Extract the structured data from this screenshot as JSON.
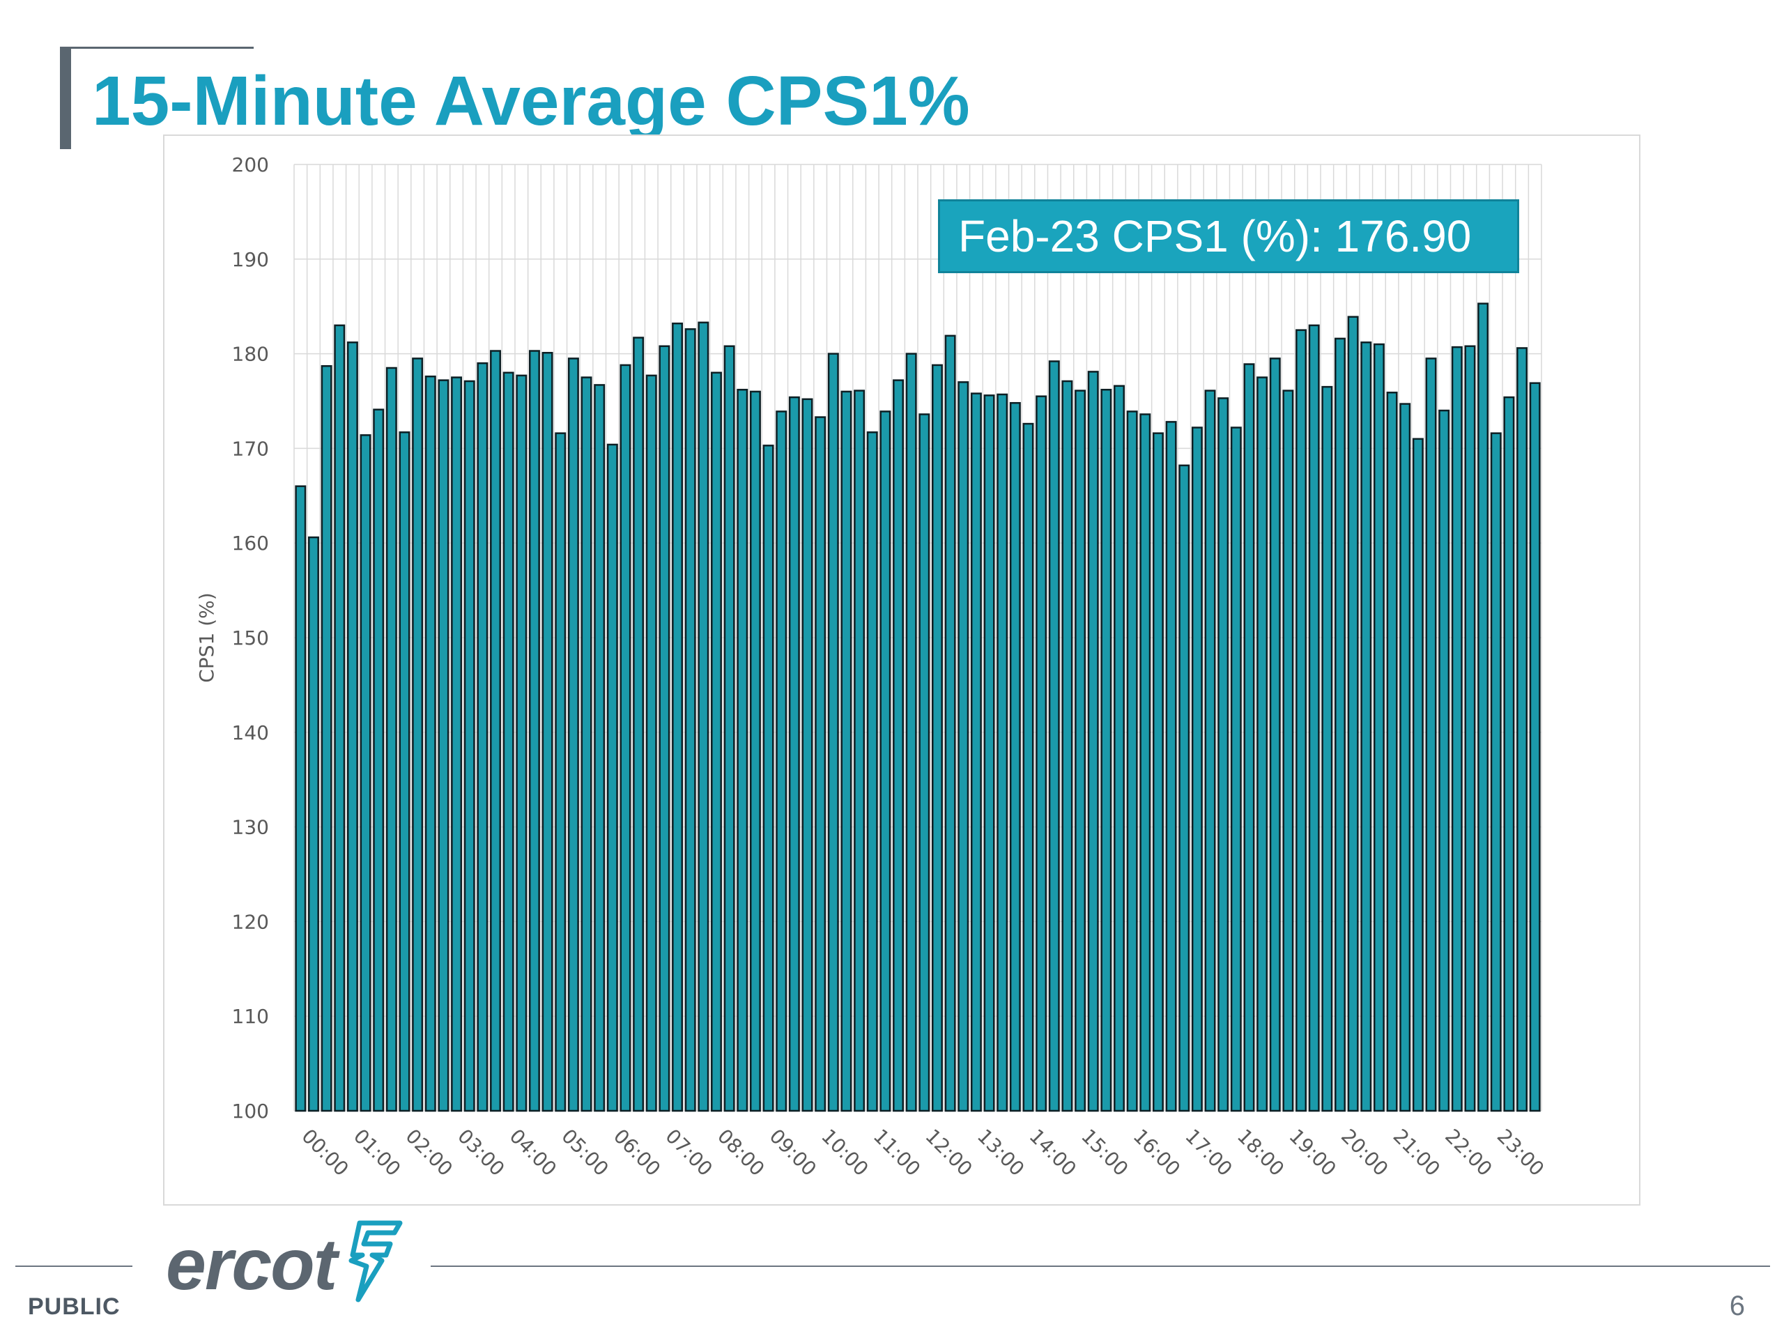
{
  "slide": {
    "title": "15-Minute Average CPS1%",
    "classification": "PUBLIC",
    "page_number": "6",
    "logo_text": "ercot"
  },
  "callout": {
    "text": "Feb-23 CPS1 (%): 176.90"
  },
  "colors": {
    "title": "#1a9fbf",
    "bar_fill": "#1b9aaa",
    "bar_stroke": "#0d1f24",
    "callout_bg": "#1aa4bd",
    "grid": "#d9d9d9",
    "logo_mark": "#1a9fbf"
  },
  "chart_data": {
    "type": "bar",
    "title": "",
    "xlabel": "",
    "ylabel": "CPS1 (%)",
    "ylim": [
      100,
      200
    ],
    "y_ticks": [
      100,
      110,
      120,
      130,
      140,
      150,
      160,
      170,
      180,
      190,
      200
    ],
    "grid": "horizontal and vertical",
    "x_tick_labels": [
      "00:00",
      "01:00",
      "02:00",
      "03:00",
      "04:00",
      "05:00",
      "06:00",
      "07:00",
      "08:00",
      "09:00",
      "10:00",
      "11:00",
      "12:00",
      "13:00",
      "14:00",
      "15:00",
      "16:00",
      "17:00",
      "18:00",
      "19:00",
      "20:00",
      "21:00",
      "22:00",
      "23:00"
    ],
    "values": [
      166.0,
      160.6,
      178.7,
      183.0,
      181.2,
      171.4,
      174.1,
      178.5,
      171.7,
      179.5,
      177.6,
      177.2,
      177.5,
      177.1,
      179.0,
      180.3,
      178.0,
      177.7,
      180.3,
      180.1,
      171.6,
      179.5,
      177.5,
      176.7,
      170.4,
      178.8,
      181.7,
      177.7,
      180.8,
      183.2,
      182.6,
      183.3,
      178.0,
      180.8,
      176.2,
      176.0,
      170.3,
      173.9,
      175.4,
      175.2,
      173.3,
      180.0,
      176.0,
      176.1,
      171.7,
      173.9,
      177.2,
      180.0,
      173.6,
      178.8,
      181.9,
      177.0,
      175.8,
      175.6,
      175.7,
      174.8,
      172.6,
      175.5,
      179.2,
      177.1,
      176.1,
      178.1,
      176.2,
      176.6,
      173.9,
      173.6,
      171.6,
      172.8,
      168.2,
      172.2,
      176.1,
      175.3,
      172.2,
      178.9,
      177.5,
      179.5,
      176.1,
      182.5,
      183.0,
      176.5,
      181.6,
      183.9,
      181.2,
      181.0,
      175.9,
      174.7,
      171.0,
      179.5,
      174.0,
      180.7,
      180.8,
      185.3,
      171.6,
      175.4,
      180.6,
      176.9
    ]
  }
}
